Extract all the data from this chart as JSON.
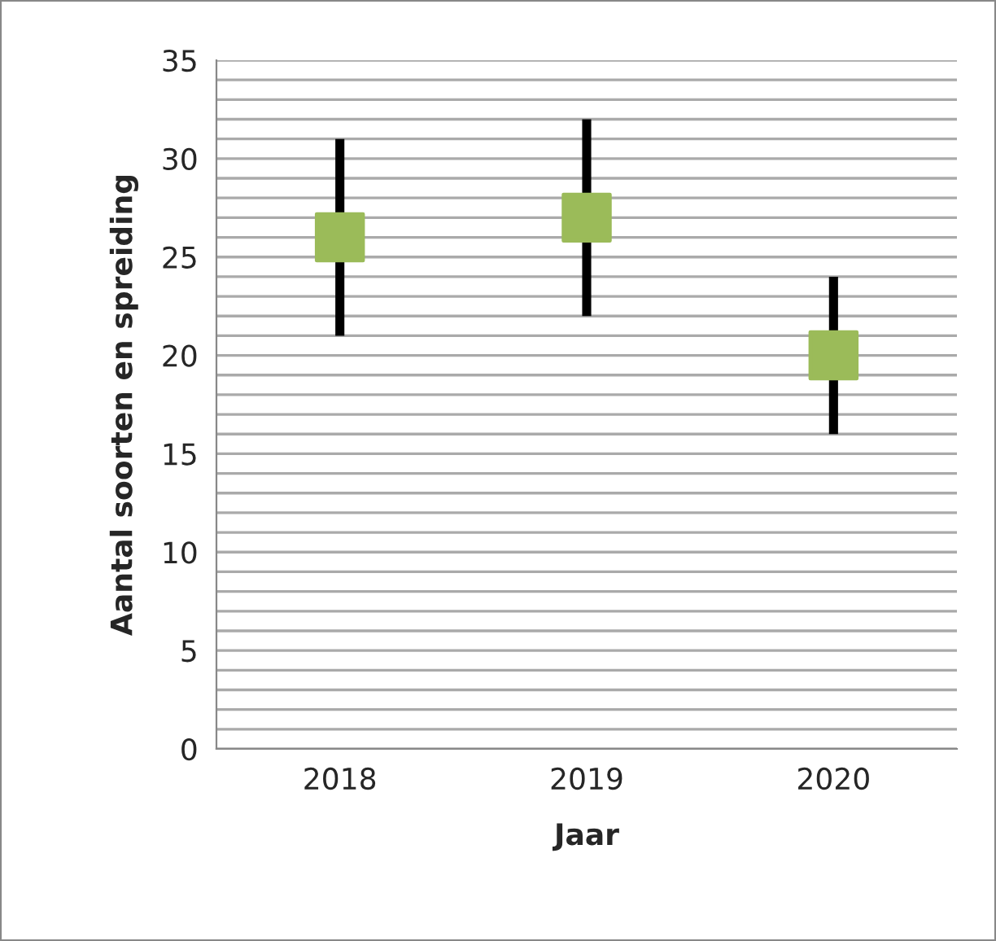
{
  "chart_data": {
    "type": "scatter",
    "xlabel": "Jaar",
    "ylabel": "Aantal soorten en spreiding",
    "categories": [
      "2018",
      "2019",
      "2020"
    ],
    "series": [
      {
        "color": "#9bbb59",
        "values": [
          26,
          27,
          20
        ],
        "errors": [
          5,
          5,
          4
        ]
      }
    ],
    "marker": "square",
    "ylim": [
      0,
      35
    ],
    "yticks": [
      0,
      {
        "value": 1,
        "label": null
      },
      {
        "value": 2,
        "label": null
      },
      {
        "value": 3,
        "label": null
      },
      {
        "value": 4,
        "label": null
      },
      5,
      {
        "value": 6,
        "label": null
      },
      {
        "value": 7,
        "label": null
      },
      {
        "value": 8,
        "label": null
      },
      {
        "value": 9,
        "label": null
      },
      10,
      {
        "value": 11,
        "label": null
      },
      {
        "value": 12,
        "label": null
      },
      {
        "value": 13,
        "label": null
      },
      {
        "value": 14,
        "label": null
      },
      15,
      {
        "value": 16,
        "label": null
      },
      {
        "value": 17,
        "label": null
      },
      {
        "value": 18,
        "label": null
      },
      {
        "value": 19,
        "label": null
      },
      20,
      {
        "value": 21,
        "label": null
      },
      {
        "value": 22,
        "label": null
      },
      {
        "value": 23,
        "label": null
      },
      {
        "value": 24,
        "label": null
      },
      25,
      {
        "value": 26,
        "label": null
      },
      {
        "value": 27,
        "label": null
      },
      {
        "value": 28,
        "label": null
      },
      {
        "value": 29,
        "label": null
      },
      30,
      {
        "value": 31,
        "label": null
      },
      {
        "value": 32,
        "label": null
      },
      {
        "value": 33,
        "label": null
      },
      {
        "value": 34,
        "label": null
      },
      35
    ],
    "grid": "y"
  }
}
